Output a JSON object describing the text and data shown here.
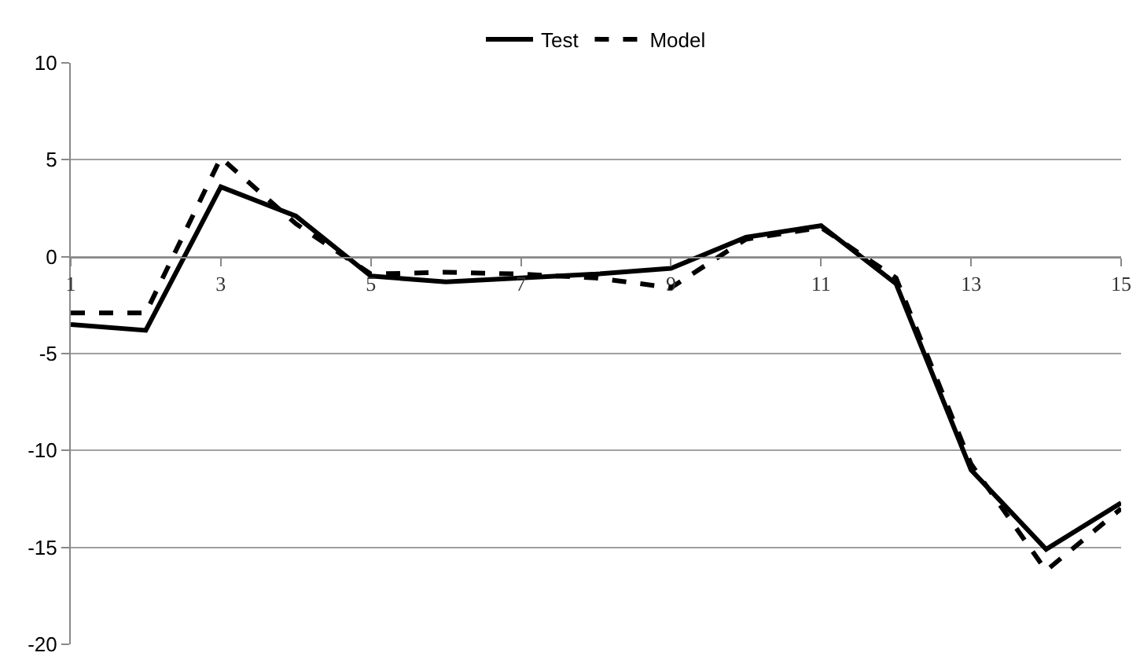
{
  "chart_data": {
    "type": "line",
    "x": [
      1,
      2,
      3,
      4,
      5,
      6,
      7,
      8,
      9,
      10,
      11,
      12,
      13,
      14,
      15
    ],
    "series": [
      {
        "name": "Test",
        "color": "#000000",
        "line_style": "solid",
        "values": [
          -3.5,
          -3.8,
          3.6,
          2.1,
          -1.0,
          -1.3,
          -1.1,
          -0.9,
          -0.6,
          1.0,
          1.6,
          -1.4,
          -11.0,
          -15.1,
          -12.7
        ]
      },
      {
        "name": "Model",
        "color": "#000000",
        "line_style": "dashed",
        "values": [
          -2.9,
          -2.9,
          5.1,
          1.7,
          -0.9,
          -0.8,
          -0.9,
          -1.1,
          -1.6,
          0.9,
          1.5,
          -1.1,
          -10.7,
          -16.2,
          -13.0
        ]
      }
    ],
    "xlim": [
      1,
      15
    ],
    "xticks": [
      1,
      3,
      5,
      7,
      9,
      11,
      13,
      15
    ],
    "ylim": [
      -20,
      10
    ],
    "yticks": [
      -20,
      -15,
      -10,
      -5,
      0,
      5,
      10
    ],
    "grid": "y",
    "legend": "top",
    "marker": "none"
  }
}
